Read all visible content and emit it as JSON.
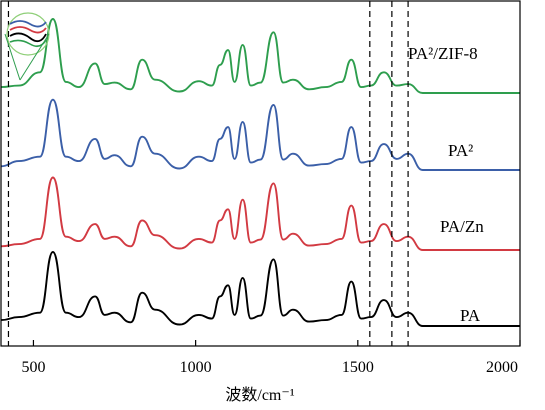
{
  "chart_data": {
    "type": "line",
    "title": "",
    "xlabel": "波数/cm⁻¹",
    "ylabel": "",
    "xlim": [
      400,
      2000
    ],
    "xticks": [
      500,
      1000,
      1500,
      2000
    ],
    "grid": false,
    "legend": "labels beside each curve at right",
    "reference_lines_x": [
      423,
      1537,
      1605,
      1655
    ],
    "peaks_x": [
      560,
      640,
      690,
      750,
      835,
      875,
      1010,
      1075,
      1100,
      1145,
      1240,
      1300,
      1480,
      1540,
      1580,
      1655
    ],
    "series": [
      {
        "name": "PA²/ZIF-8",
        "color": "#2e9e4e",
        "x": [
          400,
          455,
          520,
          560,
          600,
          640,
          690,
          720,
          750,
          800,
          835,
          875,
          950,
          1010,
          1050,
          1075,
          1100,
          1120,
          1145,
          1170,
          1200,
          1240,
          1270,
          1300,
          1350,
          1400,
          1450,
          1480,
          1510,
          1540,
          1580,
          1620,
          1655,
          1700,
          1800,
          2000
        ],
        "y": [
          0.08,
          0.1,
          0.28,
          1.0,
          0.15,
          0.08,
          0.4,
          0.12,
          0.14,
          0.05,
          0.45,
          0.18,
          0.02,
          0.16,
          0.1,
          0.38,
          0.58,
          0.15,
          0.65,
          0.1,
          0.14,
          0.82,
          0.14,
          0.18,
          0.05,
          0.08,
          0.15,
          0.45,
          0.08,
          0.1,
          0.28,
          0.1,
          0.12,
          0.0,
          0.0,
          0.0
        ]
      },
      {
        "name": "PA²",
        "color": "#3b5fa8",
        "x": [
          400,
          455,
          520,
          560,
          600,
          640,
          690,
          720,
          750,
          800,
          835,
          875,
          950,
          1010,
          1050,
          1075,
          1100,
          1120,
          1145,
          1170,
          1200,
          1240,
          1270,
          1300,
          1350,
          1400,
          1450,
          1480,
          1510,
          1540,
          1580,
          1620,
          1655,
          1700,
          1800,
          2000
        ],
        "y": [
          0.05,
          0.12,
          0.18,
          0.95,
          0.18,
          0.12,
          0.42,
          0.15,
          0.2,
          0.05,
          0.45,
          0.22,
          0.02,
          0.18,
          0.12,
          0.42,
          0.58,
          0.15,
          0.65,
          0.1,
          0.14,
          0.88,
          0.14,
          0.22,
          0.06,
          0.08,
          0.15,
          0.58,
          0.1,
          0.12,
          0.35,
          0.15,
          0.22,
          0.0,
          0.0,
          0.0
        ]
      },
      {
        "name": "PA/Zn",
        "color": "#d23a42",
        "x": [
          400,
          455,
          520,
          560,
          600,
          640,
          690,
          720,
          750,
          800,
          835,
          875,
          950,
          1010,
          1050,
          1075,
          1100,
          1120,
          1145,
          1170,
          1200,
          1240,
          1270,
          1300,
          1350,
          1400,
          1450,
          1480,
          1510,
          1540,
          1580,
          1620,
          1655,
          1700,
          1800,
          2000
        ],
        "y": [
          0.05,
          0.08,
          0.15,
          0.98,
          0.18,
          0.12,
          0.35,
          0.15,
          0.18,
          0.05,
          0.4,
          0.2,
          0.02,
          0.15,
          0.1,
          0.4,
          0.55,
          0.15,
          0.68,
          0.1,
          0.14,
          0.9,
          0.14,
          0.22,
          0.06,
          0.08,
          0.15,
          0.6,
          0.1,
          0.12,
          0.35,
          0.12,
          0.18,
          0.0,
          0.0,
          0.0
        ]
      },
      {
        "name": "PA",
        "color": "#000000",
        "x": [
          400,
          455,
          520,
          560,
          600,
          640,
          690,
          720,
          750,
          800,
          835,
          875,
          950,
          1010,
          1050,
          1075,
          1100,
          1120,
          1145,
          1170,
          1200,
          1240,
          1270,
          1300,
          1350,
          1400,
          1450,
          1480,
          1510,
          1540,
          1580,
          1620,
          1655,
          1700,
          1800,
          2000
        ],
        "y": [
          0.08,
          0.12,
          0.18,
          1.0,
          0.18,
          0.12,
          0.4,
          0.15,
          0.18,
          0.05,
          0.45,
          0.22,
          0.02,
          0.15,
          0.1,
          0.4,
          0.55,
          0.15,
          0.65,
          0.1,
          0.14,
          0.9,
          0.14,
          0.22,
          0.06,
          0.08,
          0.15,
          0.6,
          0.1,
          0.12,
          0.35,
          0.12,
          0.18,
          0.0,
          0.0,
          0.0
        ]
      }
    ]
  }
}
